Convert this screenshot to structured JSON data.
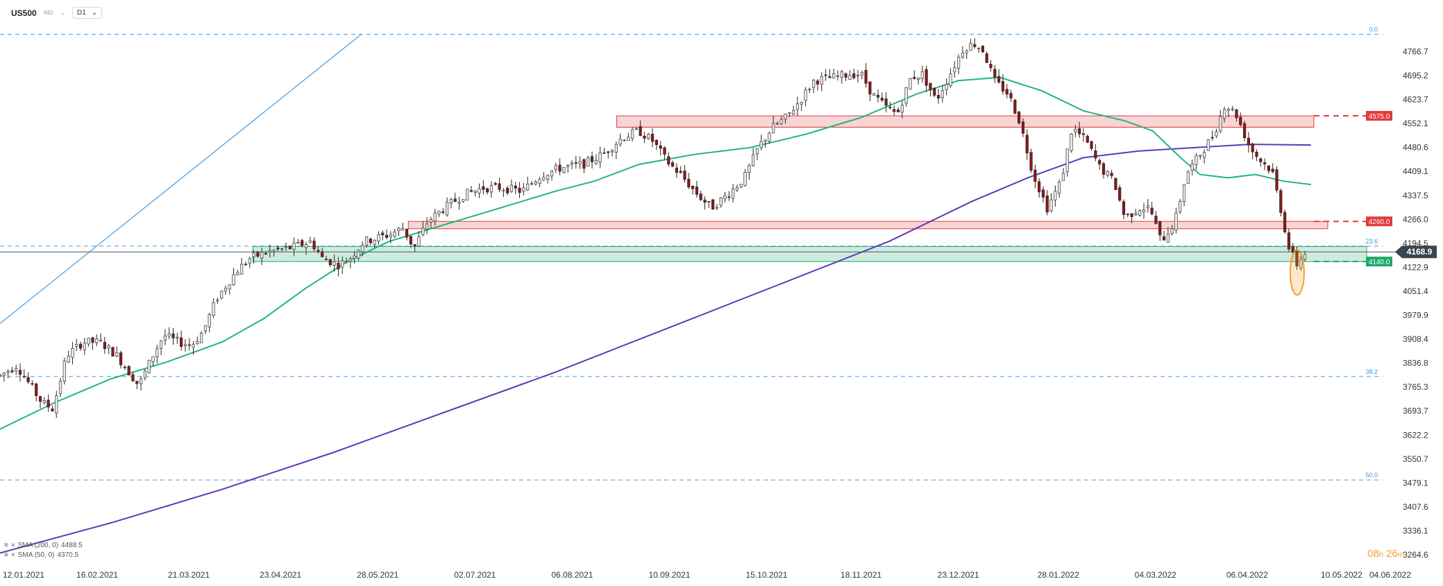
{
  "header": {
    "symbol": "US500",
    "instrument_type": "IND",
    "timeframe": "D1"
  },
  "legend": {
    "sma200_label": "SMA (200, 0)",
    "sma200_value": "4488.5",
    "sma50_label": "SMA (50, 0)",
    "sma50_value": "4370.5"
  },
  "timer": {
    "hours": "08",
    "h": "h",
    "minutes": "26",
    "m": "m"
  },
  "colors": {
    "up_candle": "#e8e8e8",
    "down_candle": "#8b1a1a",
    "sma50": "#22b57c",
    "sma200": "#5c3ab5",
    "fib_line": "#3f9be6",
    "resistance_zone": "#e23b3b",
    "support_zone": "#1fa86a",
    "highlight_ellipse": "#f0a030"
  },
  "chart_data": {
    "type": "candlestick",
    "title": "",
    "xlabel": "",
    "ylabel": "",
    "ylim": [
      3264.6,
      4838.0
    ],
    "y_ticks": [
      "4766.7",
      "4695.2",
      "4623.7",
      "4552.1",
      "4480.6",
      "4409.1",
      "4337.5",
      "4266.0",
      "4194.5",
      "4122.9",
      "4051.4",
      "3979.9",
      "3908.4",
      "3836.8",
      "3765.3",
      "3693.7",
      "3622.2",
      "3550.7",
      "3479.1",
      "3407.6",
      "3336.1",
      "3264.6"
    ],
    "x_ticks": [
      "12.01.2021",
      "16.02.2021",
      "21.03.2021",
      "23.04.2021",
      "28.05.2021",
      "02.07.2021",
      "06.08.2021",
      "10.09.2021",
      "15.10.2021",
      "18.11.2021",
      "23.12.2021",
      "28.01.2022",
      "04.03.2022",
      "06.04.2022",
      "10.05.2022",
      "04.06.2022"
    ],
    "x_tick_days": [
      0,
      35,
      68,
      101,
      136,
      171,
      206,
      241,
      276,
      310,
      345,
      381,
      416,
      449,
      483,
      508
    ],
    "fib_levels": [
      {
        "label": "0.0",
        "value": 4818.6
      },
      {
        "label": "23.6",
        "value": 4186.0
      },
      {
        "label": "38.2",
        "value": 3797.0
      },
      {
        "label": "50.0",
        "value": 3488.0
      }
    ],
    "horizontal_levels": [
      {
        "label": "4575.0",
        "value": 4575.0
      },
      {
        "label": "4260.0",
        "value": 4260.0
      },
      {
        "label": "4140.0",
        "value": 4140.0
      }
    ],
    "last_price": "4168.9",
    "zones": [
      {
        "type": "resistance",
        "from_day": 222,
        "to_day": 473,
        "low": 4541,
        "high": 4575
      },
      {
        "type": "resistance",
        "from_day": 147,
        "to_day": 478,
        "low": 4238,
        "high": 4260
      },
      {
        "type": "support",
        "from_day": 91,
        "to_day": 492,
        "low": 4140,
        "high": 4185
      }
    ],
    "trendline": {
      "start": {
        "day": 0,
        "value": 3955
      },
      "end": {
        "day": 130,
        "value": 4818
      }
    },
    "highlight": {
      "day": 467,
      "low": 4040,
      "high": 4175
    },
    "candles_anchor": [
      [
        0,
        3800
      ],
      [
        6,
        3830
      ],
      [
        15,
        3720
      ],
      [
        19,
        3700
      ],
      [
        24,
        3860
      ],
      [
        30,
        3900
      ],
      [
        36,
        3900
      ],
      [
        42,
        3860
      ],
      [
        50,
        3770
      ],
      [
        55,
        3860
      ],
      [
        59,
        3920
      ],
      [
        64,
        3900
      ],
      [
        69,
        3890
      ],
      [
        73,
        3930
      ],
      [
        78,
        4030
      ],
      [
        85,
        4110
      ],
      [
        90,
        4150
      ],
      [
        97,
        4170
      ],
      [
        104,
        4180
      ],
      [
        112,
        4200
      ],
      [
        116,
        4150
      ],
      [
        122,
        4130
      ],
      [
        126,
        4150
      ],
      [
        131,
        4200
      ],
      [
        140,
        4220
      ],
      [
        145,
        4240
      ],
      [
        149,
        4180
      ],
      [
        154,
        4260
      ],
      [
        160,
        4300
      ],
      [
        167,
        4340
      ],
      [
        174,
        4360
      ],
      [
        181,
        4360
      ],
      [
        188,
        4350
      ],
      [
        195,
        4400
      ],
      [
        202,
        4420
      ],
      [
        210,
        4430
      ],
      [
        217,
        4460
      ],
      [
        224,
        4510
      ],
      [
        230,
        4530
      ],
      [
        235,
        4500
      ],
      [
        240,
        4440
      ],
      [
        245,
        4400
      ],
      [
        250,
        4350
      ],
      [
        256,
        4300
      ],
      [
        262,
        4340
      ],
      [
        268,
        4390
      ],
      [
        273,
        4480
      ],
      [
        278,
        4540
      ],
      [
        283,
        4570
      ],
      [
        288,
        4620
      ],
      [
        293,
        4680
      ],
      [
        300,
        4690
      ],
      [
        306,
        4700
      ],
      [
        310,
        4700
      ],
      [
        314,
        4640
      ],
      [
        319,
        4600
      ],
      [
        323,
        4580
      ],
      [
        328,
        4690
      ],
      [
        332,
        4700
      ],
      [
        337,
        4620
      ],
      [
        342,
        4700
      ],
      [
        347,
        4780
      ],
      [
        351,
        4790
      ],
      [
        354,
        4770
      ],
      [
        358,
        4680
      ],
      [
        363,
        4640
      ],
      [
        367,
        4560
      ],
      [
        372,
        4400
      ],
      [
        377,
        4300
      ],
      [
        382,
        4380
      ],
      [
        386,
        4540
      ],
      [
        391,
        4500
      ],
      [
        396,
        4420
      ],
      [
        401,
        4380
      ],
      [
        405,
        4270
      ],
      [
        410,
        4300
      ],
      [
        414,
        4300
      ],
      [
        418,
        4200
      ],
      [
        423,
        4260
      ],
      [
        427,
        4400
      ],
      [
        432,
        4460
      ],
      [
        437,
        4520
      ],
      [
        441,
        4610
      ],
      [
        445,
        4580
      ],
      [
        450,
        4480
      ],
      [
        454,
        4440
      ],
      [
        458,
        4410
      ],
      [
        461,
        4300
      ],
      [
        464,
        4180
      ],
      [
        467,
        4130
      ],
      [
        470,
        4170
      ]
    ],
    "sma50": [
      [
        0,
        3640
      ],
      [
        20,
        3720
      ],
      [
        40,
        3790
      ],
      [
        60,
        3840
      ],
      [
        80,
        3900
      ],
      [
        95,
        3970
      ],
      [
        110,
        4060
      ],
      [
        125,
        4140
      ],
      [
        140,
        4200
      ],
      [
        160,
        4250
      ],
      [
        180,
        4300
      ],
      [
        200,
        4350
      ],
      [
        214,
        4380
      ],
      [
        230,
        4430
      ],
      [
        250,
        4460
      ],
      [
        270,
        4480
      ],
      [
        290,
        4520
      ],
      [
        310,
        4570
      ],
      [
        330,
        4640
      ],
      [
        345,
        4680
      ],
      [
        360,
        4690
      ],
      [
        375,
        4650
      ],
      [
        390,
        4590
      ],
      [
        405,
        4560
      ],
      [
        415,
        4530
      ],
      [
        425,
        4450
      ],
      [
        432,
        4400
      ],
      [
        442,
        4390
      ],
      [
        452,
        4400
      ],
      [
        462,
        4380
      ],
      [
        472,
        4370
      ]
    ],
    "sma200": [
      [
        0,
        3270
      ],
      [
        40,
        3360
      ],
      [
        80,
        3460
      ],
      [
        120,
        3570
      ],
      [
        160,
        3690
      ],
      [
        200,
        3810
      ],
      [
        240,
        3940
      ],
      [
        280,
        4070
      ],
      [
        320,
        4200
      ],
      [
        350,
        4320
      ],
      [
        370,
        4390
      ],
      [
        390,
        4450
      ],
      [
        410,
        4470
      ],
      [
        430,
        4480
      ],
      [
        450,
        4490
      ],
      [
        472,
        4488
      ]
    ]
  }
}
